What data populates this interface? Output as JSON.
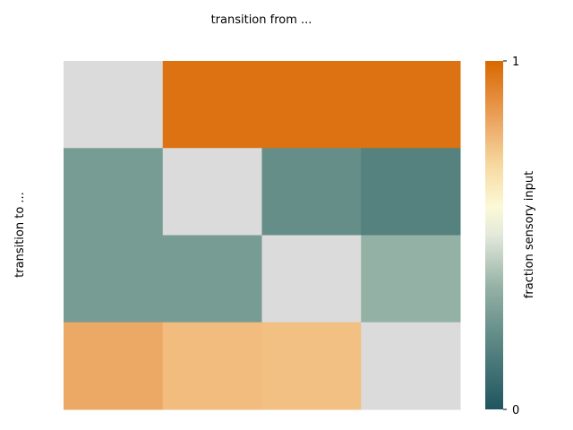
{
  "chart_data": {
    "type": "heatmap",
    "xlabel": "transition from ...",
    "ylabel": "transition to ...",
    "rows": 4,
    "cols": 4,
    "values": [
      [
        null,
        0.97,
        0.97,
        0.97
      ],
      [
        0.27,
        null,
        0.22,
        0.17
      ],
      [
        0.27,
        0.27,
        null,
        0.35
      ],
      [
        0.82,
        0.77,
        0.76,
        null
      ]
    ],
    "diagonal_color": "#dbdbdb",
    "colorbar": {
      "label": "fraction sensory input",
      "min": 0,
      "max": 1,
      "ticks": [
        "0",
        "1"
      ],
      "colormap": [
        [
          0.0,
          "#1f5560"
        ],
        [
          0.2,
          "#5e8985"
        ],
        [
          0.35,
          "#94b1a6"
        ],
        [
          0.5,
          "#e3e9da"
        ],
        [
          0.58,
          "#fcf9d7"
        ],
        [
          0.7,
          "#f7d9a0"
        ],
        [
          0.8,
          "#eeb070"
        ],
        [
          0.9,
          "#e48a38"
        ],
        [
          1.0,
          "#d96800"
        ]
      ]
    }
  }
}
